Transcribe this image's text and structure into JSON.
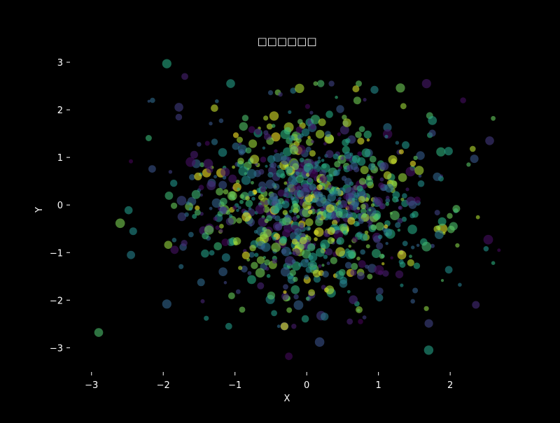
{
  "chart_data": {
    "type": "scatter",
    "title": "□□□□□□",
    "xlabel": "X",
    "ylabel": "Y",
    "xlim": [
      -3.3,
      2.75
    ],
    "ylim": [
      -3.45,
      3.25
    ],
    "xticks": [
      -3,
      -2,
      -1,
      0,
      1,
      2
    ],
    "yticks": [
      -3,
      -2,
      -1,
      0,
      1,
      2,
      3
    ],
    "grid": false,
    "legend": "none",
    "colormap": "viridis",
    "background_color": "#000000",
    "text_color": "#ffffff",
    "point_count": 1000,
    "point_opacity": 0.6,
    "distribution": {
      "x": {
        "mean": 0.0,
        "std": 0.85
      },
      "y": {
        "mean": 0.0,
        "std": 1.0
      }
    },
    "size_range": [
      4,
      14
    ],
    "color_value_range": [
      0,
      1
    ],
    "notable_points": [
      {
        "x": -2.9,
        "y": -2.68
      },
      {
        "x": -1.95,
        "y": 2.97
      },
      {
        "x": -1.7,
        "y": 2.7
      },
      {
        "x": -2.15,
        "y": 2.2
      },
      {
        "x": -2.2,
        "y": 2.18
      },
      {
        "x": 2.18,
        "y": 2.2
      },
      {
        "x": 2.55,
        "y": 1.35
      },
      {
        "x": 2.6,
        "y": 1.82
      },
      {
        "x": 1.7,
        "y": -3.05
      },
      {
        "x": 0.18,
        "y": -2.88
      },
      {
        "x": -0.25,
        "y": -3.18
      },
      {
        "x": -1.4,
        "y": -2.38
      },
      {
        "x": -1.95,
        "y": -2.08
      },
      {
        "x": -0.9,
        "y": -2.2
      },
      {
        "x": 0.6,
        "y": -2.45
      },
      {
        "x": 0.75,
        "y": -2.45
      },
      {
        "x": -0.1,
        "y": 2.45
      },
      {
        "x": 2.68,
        "y": -0.95
      },
      {
        "x": -2.45,
        "y": -1.05
      },
      {
        "x": 2.1,
        "y": -0.85
      },
      {
        "x": 2.5,
        "y": -0.92
      }
    ]
  }
}
